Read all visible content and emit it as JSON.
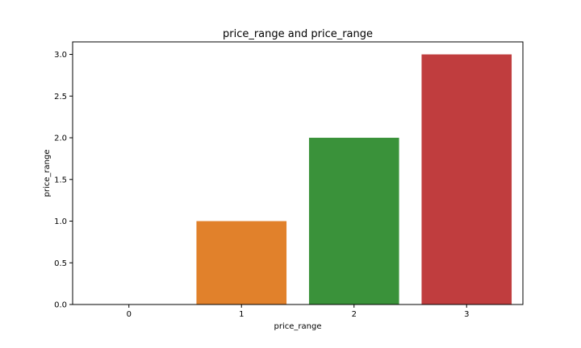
{
  "chart_data": {
    "type": "bar",
    "title": "price_range and price_range",
    "xlabel": "price_range",
    "ylabel": "price_range",
    "categories": [
      "0",
      "1",
      "2",
      "3"
    ],
    "values": [
      0,
      1,
      2,
      3
    ],
    "ylim": [
      0,
      3.15
    ],
    "yticks": [
      0.0,
      0.5,
      1.0,
      1.5,
      2.0,
      2.5,
      3.0
    ],
    "ytick_labels": [
      "0.0",
      "0.5",
      "1.0",
      "1.5",
      "2.0",
      "2.5",
      "3.0"
    ],
    "colors": [
      "#3a75b0",
      "#e1812b",
      "#3a923a",
      "#c03d3e"
    ],
    "grid": false,
    "legend": "none"
  }
}
